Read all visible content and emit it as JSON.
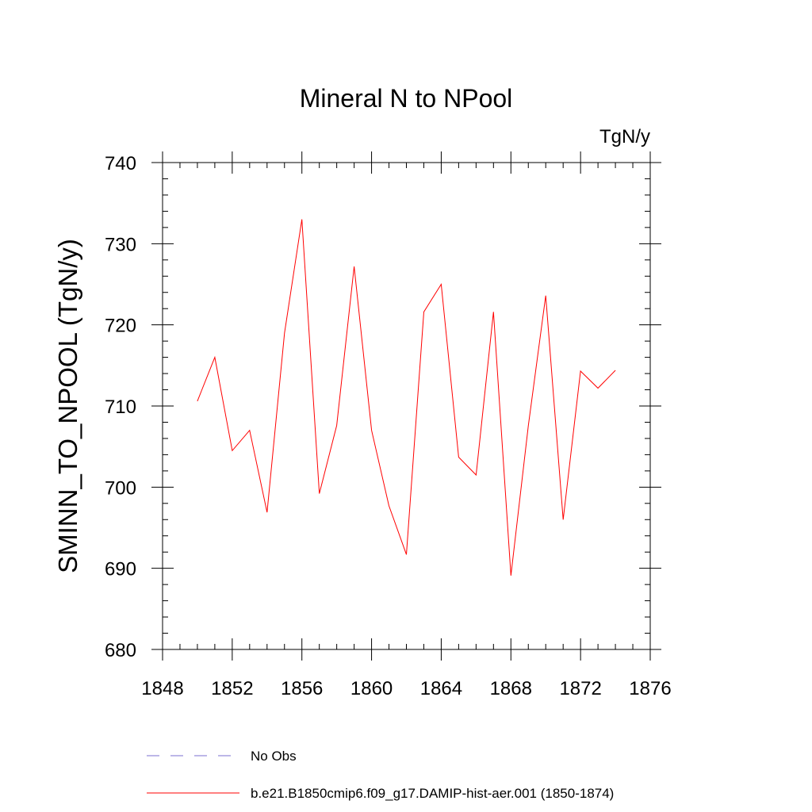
{
  "chart_data": {
    "type": "line",
    "title": "Mineral N to NPool",
    "units_label": "TgN/y",
    "xlabel": "",
    "ylabel": "SMINN_TO_NPOOL  (TgN/y)",
    "xlim": [
      1848,
      1876
    ],
    "ylim": [
      680,
      740
    ],
    "x_ticks": [
      1848,
      1852,
      1856,
      1860,
      1864,
      1868,
      1872,
      1876
    ],
    "y_ticks": [
      680,
      690,
      700,
      710,
      720,
      730,
      740
    ],
    "grid": false,
    "legend_position": "bottom",
    "legend": [
      {
        "label": "No Obs",
        "style": "dashed",
        "color": "#7b6fd0"
      },
      {
        "label": "b.e21.B1850cmip6.f09_g17.DAMIP-hist-aer.001 (1850-1874)",
        "style": "solid",
        "color": "#ff0000"
      }
    ],
    "series": [
      {
        "name": "b.e21.B1850cmip6.f09_g17.DAMIP-hist-aer.001 (1850-1874)",
        "color": "#ff0000",
        "x": [
          1850,
          1851,
          1852,
          1853,
          1854,
          1855,
          1856,
          1857,
          1858,
          1859,
          1860,
          1861,
          1862,
          1863,
          1864,
          1865,
          1866,
          1867,
          1868,
          1869,
          1870,
          1871,
          1872,
          1873,
          1874
        ],
        "y": [
          710.6,
          716.0,
          704.5,
          707.0,
          696.9,
          719.0,
          733.0,
          699.2,
          707.6,
          727.2,
          707.0,
          697.7,
          691.7,
          721.6,
          725.0,
          703.7,
          701.5,
          721.6,
          689.1,
          707.6,
          723.6,
          696.0,
          714.3,
          712.2,
          714.4
        ]
      }
    ]
  }
}
